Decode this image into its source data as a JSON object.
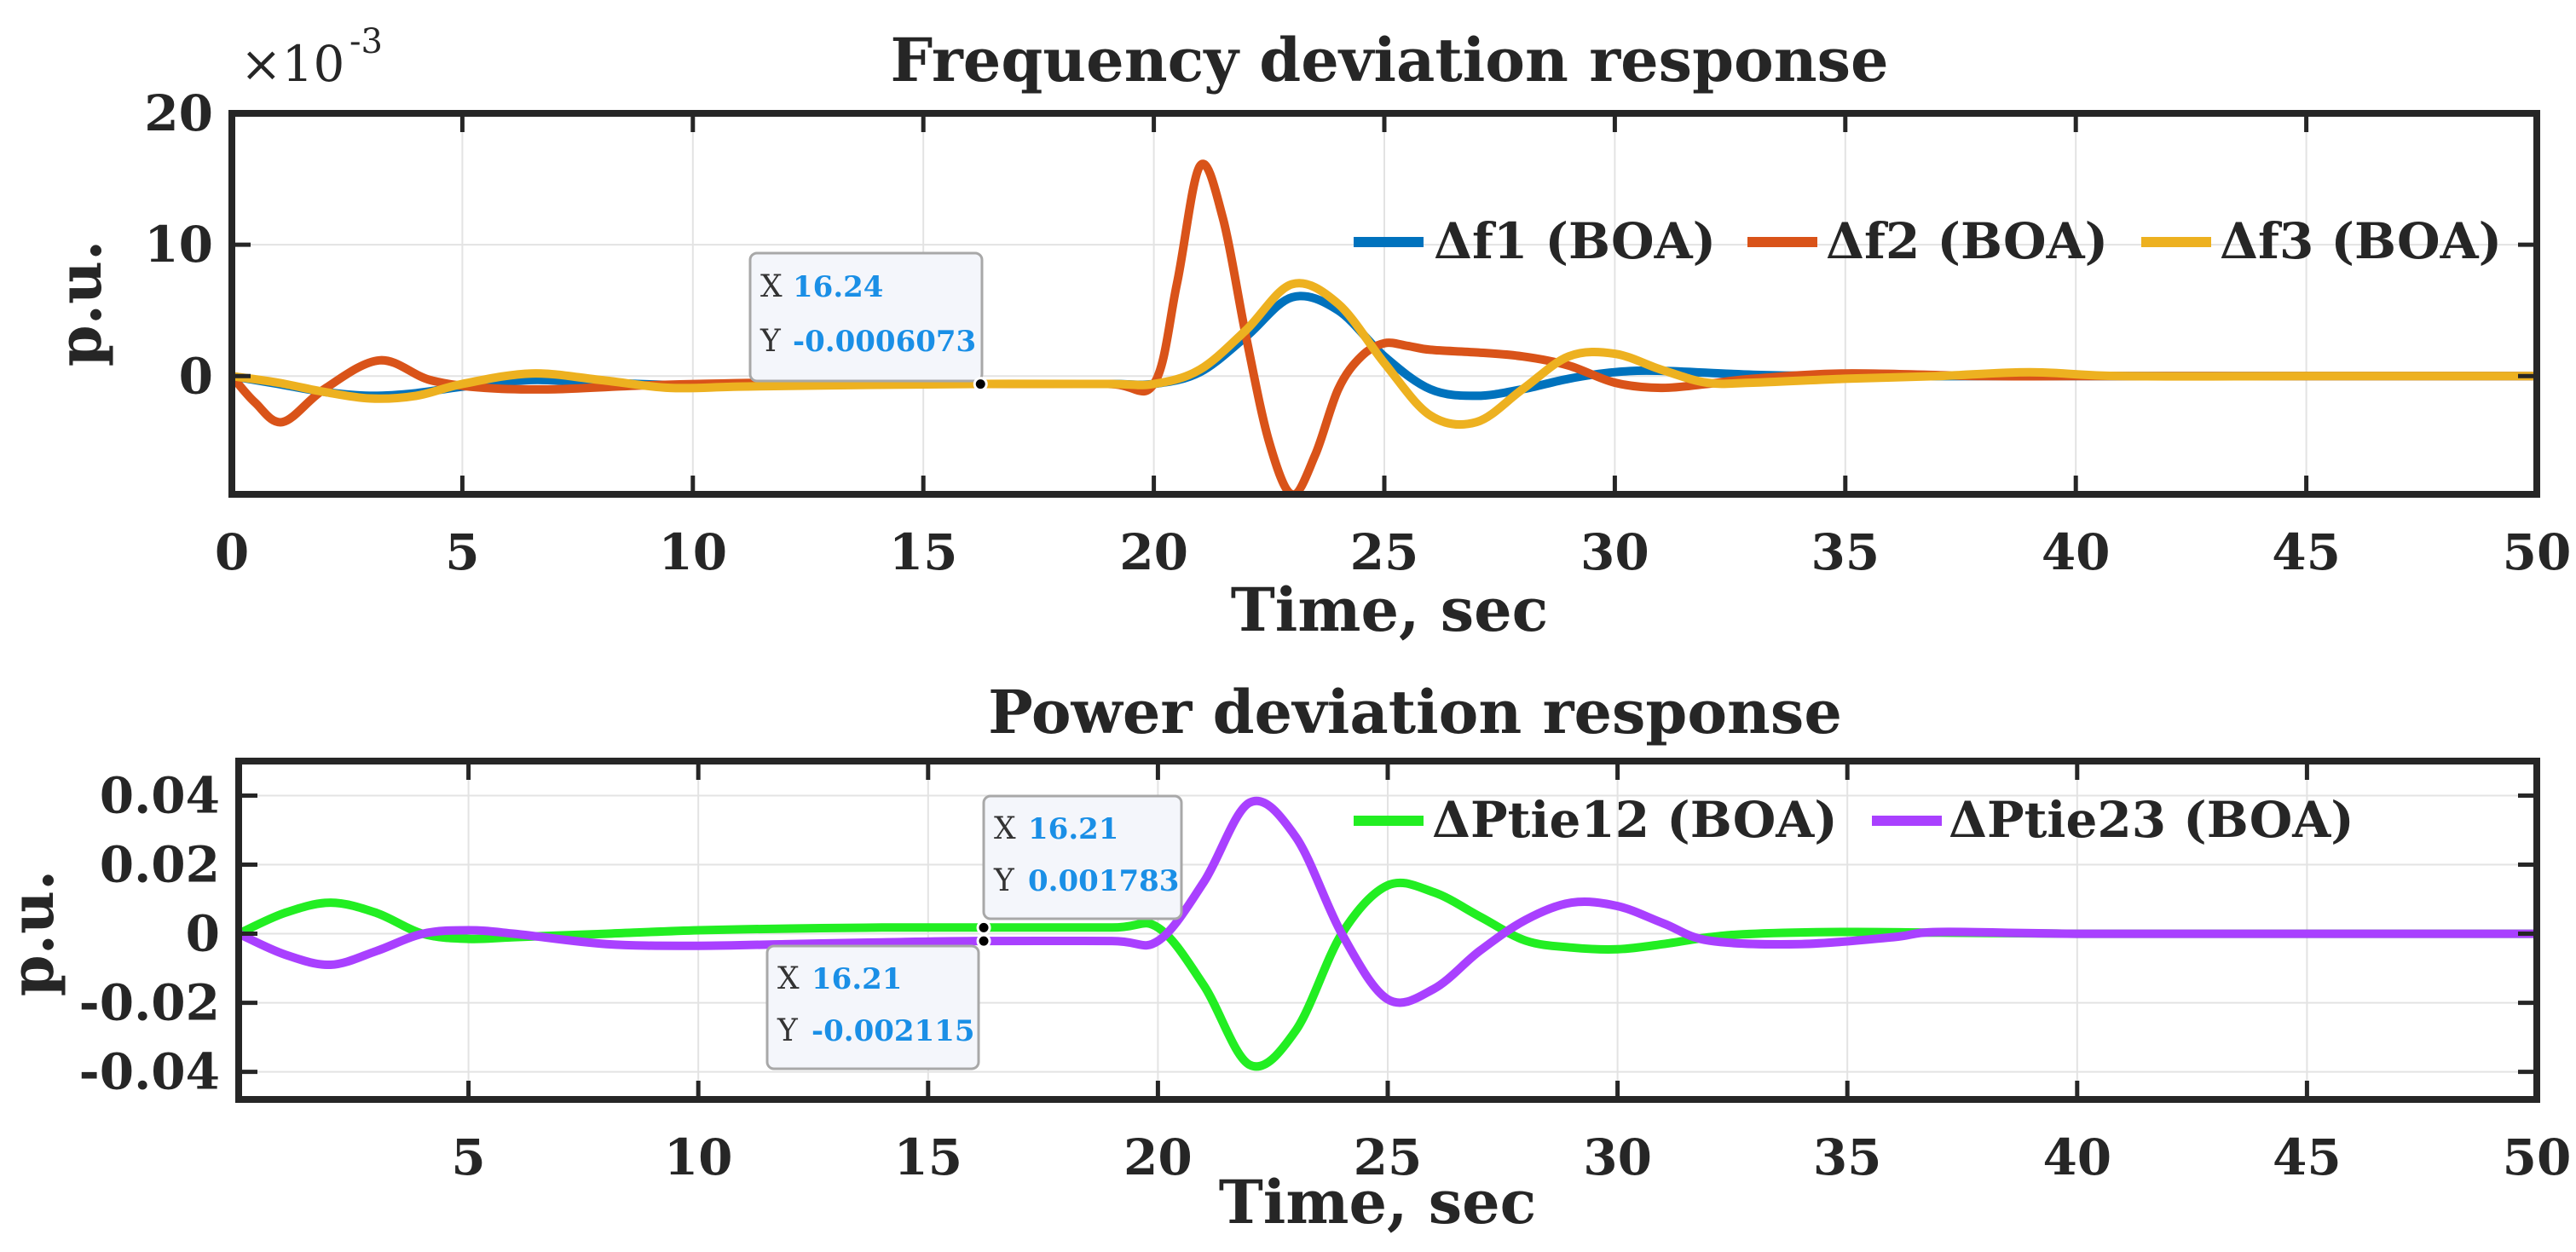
{
  "chart_data": [
    {
      "type": "line",
      "title": "Frequency deviation response",
      "xlabel": "Time, sec",
      "ylabel": "p.u.",
      "xlim": [
        0,
        50
      ],
      "ylim": [
        -9,
        20
      ],
      "y_multiplier": {
        "base": "×10",
        "exponent": "-3"
      },
      "xticks": [
        0,
        5,
        10,
        15,
        20,
        25,
        30,
        35,
        40,
        45,
        50
      ],
      "yticks": [
        0,
        10,
        20
      ],
      "grid": true,
      "legend_position": "top-right",
      "series": [
        {
          "name": "Δf1 (BOA)",
          "color": "#0072bd",
          "x": [
            0,
            1,
            2,
            3,
            4,
            5,
            6.5,
            8,
            10,
            12,
            14,
            16.24,
            19,
            20,
            21,
            22,
            23,
            24,
            25,
            26,
            27,
            28,
            29,
            30,
            31,
            33,
            35,
            38,
            40,
            45,
            50
          ],
          "y": [
            0,
            -0.6,
            -1.2,
            -1.5,
            -1.3,
            -0.8,
            -0.3,
            -0.5,
            -0.7,
            -0.6,
            -0.6,
            -0.6,
            -0.6,
            -0.6,
            0.3,
            3.0,
            6.0,
            5.0,
            1.5,
            -1.0,
            -1.5,
            -1.0,
            -0.2,
            0.3,
            0.4,
            0.1,
            0,
            0,
            0,
            0,
            0
          ]
        },
        {
          "name": "Δf2 (BOA)",
          "color": "#d95319",
          "x": [
            0,
            0.5,
            1.1,
            2,
            3.2,
            4.3,
            5.5,
            7,
            9,
            12,
            14,
            16.24,
            19,
            20,
            20.5,
            21,
            21.5,
            22,
            22.5,
            23,
            23.5,
            24,
            24.5,
            25,
            25.5,
            26,
            27,
            28,
            29,
            30,
            31,
            32,
            33,
            35,
            38,
            40,
            45,
            50
          ],
          "y": [
            0,
            -2.0,
            -3.5,
            -1.0,
            1.2,
            -0.3,
            -0.9,
            -1.0,
            -0.7,
            -0.5,
            -0.6,
            -0.6,
            -0.6,
            -0.6,
            7.0,
            16.0,
            12.0,
            3.0,
            -5.0,
            -9.0,
            -6.0,
            -1.0,
            1.5,
            2.5,
            2.3,
            2.0,
            1.8,
            1.5,
            0.8,
            -0.5,
            -0.9,
            -0.6,
            -0.2,
            0.2,
            0,
            0,
            0,
            0
          ]
        },
        {
          "name": "Δf3 (BOA)",
          "color": "#edb120",
          "x": [
            0,
            1,
            2,
            3,
            4,
            5,
            6.5,
            8,
            9.5,
            11,
            13,
            16.24,
            19,
            20,
            21,
            22,
            23,
            24,
            25,
            26,
            27,
            28,
            29,
            30,
            31,
            32,
            33,
            35,
            37,
            39,
            41,
            45,
            50
          ],
          "y": [
            0,
            -0.5,
            -1.2,
            -1.7,
            -1.5,
            -0.6,
            0.2,
            -0.3,
            -0.9,
            -0.8,
            -0.7,
            -0.6,
            -0.6,
            -0.6,
            0.5,
            3.5,
            7.0,
            5.5,
            1.0,
            -3.0,
            -3.5,
            -1.0,
            1.5,
            1.7,
            0.5,
            -0.5,
            -0.5,
            -0.2,
            0,
            0.3,
            0,
            0,
            0
          ]
        }
      ],
      "datatips": [
        {
          "x_label": "X",
          "x_value": "16.24",
          "y_label": "Y",
          "y_value": "-0.0006073",
          "point": [
            16.24,
            -0.6073
          ]
        }
      ]
    },
    {
      "type": "line",
      "title": "Power deviation response",
      "xlabel": "Time, sec",
      "ylabel": "p.u.",
      "xlim": [
        0,
        50
      ],
      "ylim": [
        -0.048,
        0.05
      ],
      "xticks": [
        5,
        10,
        15,
        20,
        25,
        30,
        35,
        40,
        45,
        50
      ],
      "yticks": [
        -0.04,
        -0.02,
        0,
        0.02,
        0.04
      ],
      "ytick_labels": [
        "-0.04",
        "-0.02",
        "0",
        "0.02",
        "0.04"
      ],
      "grid": true,
      "legend_position": "top-right",
      "series": [
        {
          "name": "ΔPtie12 (BOA)",
          "color": "#22ee22",
          "x": [
            0,
            1,
            2,
            3,
            4,
            5,
            6,
            8,
            10,
            12,
            14,
            16.21,
            19,
            20,
            21,
            22,
            23,
            24,
            25,
            26,
            27,
            28,
            29,
            30,
            31,
            32,
            33,
            35,
            37,
            40,
            45,
            50
          ],
          "y": [
            0,
            0.006,
            0.009,
            0.006,
            0.0,
            -0.0015,
            -0.001,
            0.0,
            0.001,
            0.0015,
            0.0018,
            0.0018,
            0.0018,
            0.0018,
            -0.015,
            -0.038,
            -0.028,
            0.0,
            0.014,
            0.012,
            0.005,
            -0.002,
            -0.004,
            -0.0045,
            -0.003,
            -0.001,
            0.0,
            0.0005,
            0.0003,
            0,
            0,
            0
          ]
        },
        {
          "name": "ΔPtie23 (BOA)",
          "color": "#a940ff",
          "x": [
            0,
            1,
            2,
            3,
            4,
            5,
            6,
            8,
            10,
            12,
            14,
            16.21,
            19,
            20,
            21,
            22,
            23,
            24,
            25,
            26,
            27,
            28,
            29,
            30,
            31,
            32,
            34,
            36,
            37,
            40,
            45,
            50
          ],
          "y": [
            0,
            -0.006,
            -0.009,
            -0.005,
            0.0,
            0.001,
            0.0,
            -0.003,
            -0.0035,
            -0.003,
            -0.0025,
            -0.0021,
            -0.0021,
            -0.0021,
            0.015,
            0.038,
            0.028,
            0.0,
            -0.019,
            -0.016,
            -0.005,
            0.004,
            0.009,
            0.008,
            0.003,
            -0.002,
            -0.003,
            -0.001,
            0.0005,
            0,
            0,
            0
          ]
        }
      ],
      "datatips": [
        {
          "x_label": "X",
          "x_value": "16.21",
          "y_label": "Y",
          "y_value": "0.001783",
          "point": [
            16.21,
            0.001783
          ]
        },
        {
          "x_label": "X",
          "x_value": "16.21",
          "y_label": "Y",
          "y_value": "-0.002115",
          "point": [
            16.21,
            -0.002115
          ]
        }
      ]
    }
  ]
}
